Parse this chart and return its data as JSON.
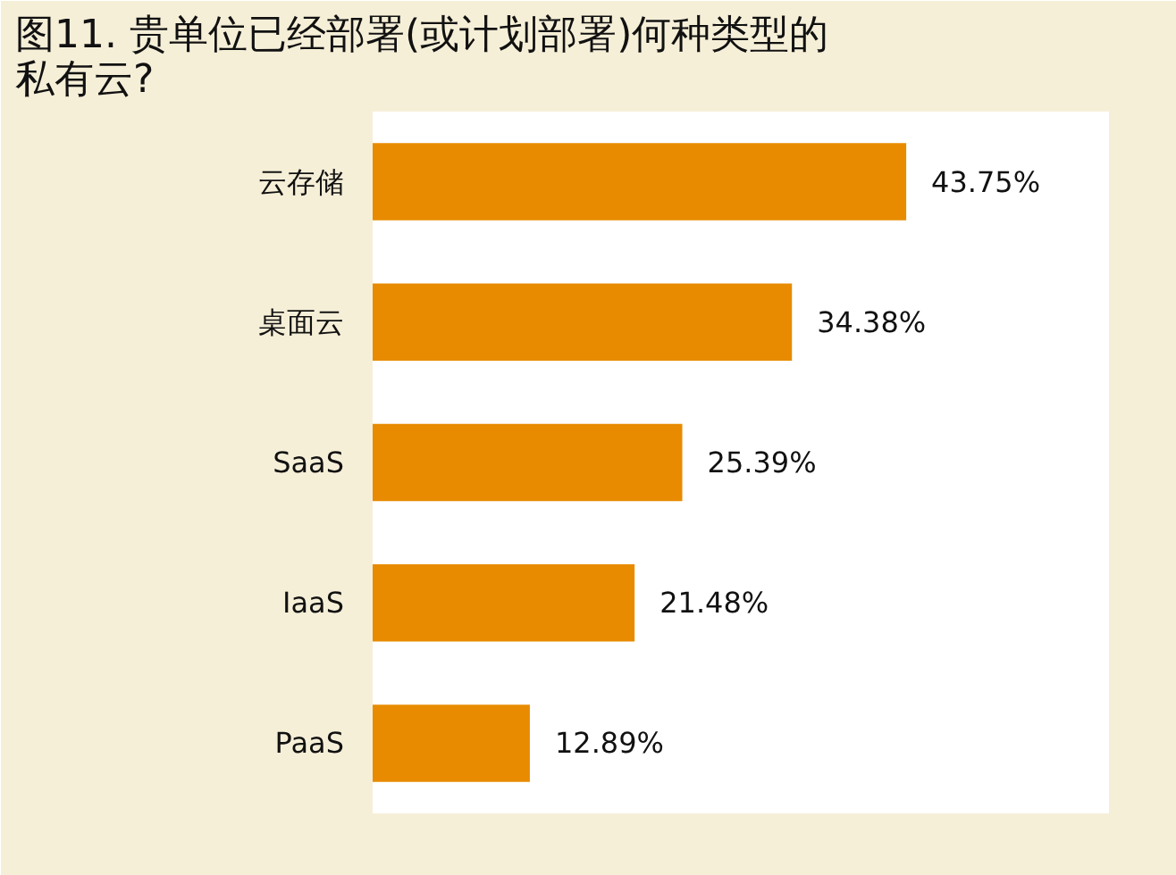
{
  "chart_data": {
    "type": "bar",
    "orientation": "horizontal",
    "title": "图11. 贵单位已经部署(或计划部署)何种类型的私有云?",
    "categories": [
      "云存储",
      "桌面云",
      "SaaS",
      "IaaS",
      "PaaS"
    ],
    "values": [
      43.75,
      34.38,
      25.39,
      21.48,
      12.89
    ],
    "color": "#e88b00",
    "value_labels": [
      "43.75%",
      "34.38%",
      "25.39%",
      "21.48%",
      "12.89%"
    ]
  }
}
